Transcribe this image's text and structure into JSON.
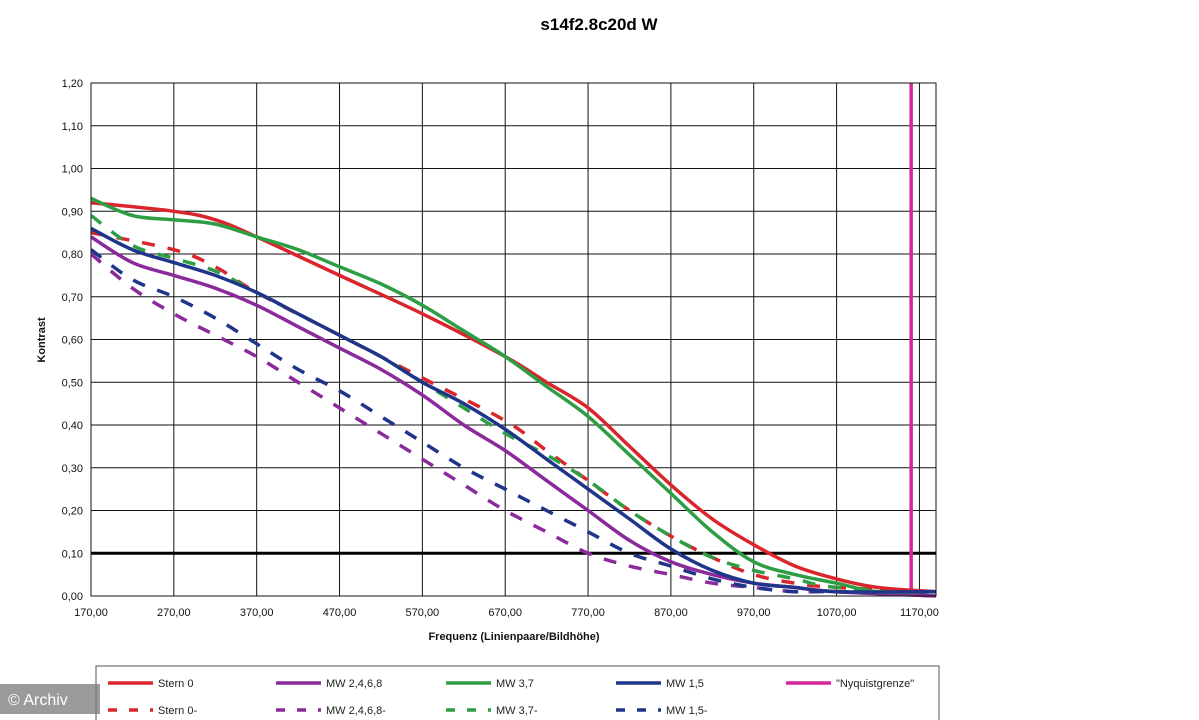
{
  "chart_data": {
    "type": "line",
    "title": "s14f2.8c20d W",
    "xlabel": "Frequenz (Linienpaare/Bildhöhe)",
    "ylabel": "Kontrast",
    "xlim": [
      170,
      1190
    ],
    "ylim": [
      0,
      1.2
    ],
    "x_ticks": [
      "170,00",
      "270,00",
      "370,00",
      "470,00",
      "570,00",
      "670,00",
      "770,00",
      "870,00",
      "970,00",
      "1070,00",
      "1170,00"
    ],
    "y_ticks": [
      "0,00",
      "0,10",
      "0,20",
      "0,30",
      "0,40",
      "0,50",
      "0,60",
      "0,70",
      "0,80",
      "0,90",
      "1,00",
      "1,10",
      "1,20"
    ],
    "x_tick_values": [
      170,
      270,
      370,
      470,
      570,
      670,
      770,
      870,
      970,
      1070,
      1170
    ],
    "y_tick_values": [
      0,
      0.1,
      0.2,
      0.3,
      0.4,
      0.5,
      0.6,
      0.7,
      0.8,
      0.9,
      1.0,
      1.1,
      1.2
    ],
    "grid": true,
    "legend_position": "bottom",
    "reference_lines": [
      {
        "orientation": "horizontal",
        "value": 0.1,
        "color": "#000000"
      },
      {
        "orientation": "vertical",
        "value": 1160,
        "color": "#d6279a",
        "name": "\"Nyquistgrenze\""
      }
    ],
    "series": [
      {
        "name": "Stern 0",
        "color": "#d9252b",
        "dashed": false,
        "x": [
          170,
          270,
          320,
          370,
          470,
          570,
          670,
          720,
          770,
          820,
          870,
          920,
          970,
          1020,
          1070,
          1120,
          1190
        ],
        "y": [
          0.92,
          0.9,
          0.88,
          0.84,
          0.75,
          0.66,
          0.56,
          0.5,
          0.44,
          0.35,
          0.26,
          0.18,
          0.12,
          0.07,
          0.04,
          0.02,
          0.01
        ]
      },
      {
        "name": "MW 2,4,6,8",
        "color": "#8b2a9b",
        "dashed": false,
        "x": [
          170,
          220,
          270,
          320,
          370,
          420,
          470,
          520,
          570,
          620,
          670,
          720,
          770,
          820,
          870,
          920,
          970,
          1020,
          1070,
          1190
        ],
        "y": [
          0.84,
          0.78,
          0.75,
          0.72,
          0.68,
          0.63,
          0.58,
          0.53,
          0.47,
          0.4,
          0.34,
          0.27,
          0.2,
          0.13,
          0.08,
          0.05,
          0.03,
          0.02,
          0.01,
          0.0
        ]
      },
      {
        "name": "MW 3,7",
        "color": "#2e9e45",
        "dashed": false,
        "x": [
          170,
          220,
          270,
          320,
          370,
          420,
          470,
          520,
          570,
          620,
          670,
          720,
          770,
          820,
          870,
          920,
          970,
          1020,
          1070,
          1120,
          1190
        ],
        "y": [
          0.93,
          0.89,
          0.88,
          0.87,
          0.84,
          0.81,
          0.77,
          0.73,
          0.68,
          0.62,
          0.56,
          0.49,
          0.42,
          0.33,
          0.24,
          0.15,
          0.08,
          0.05,
          0.03,
          0.01,
          0.01
        ]
      },
      {
        "name": "MW 1,5",
        "color": "#1e3589",
        "dashed": false,
        "x": [
          170,
          220,
          270,
          320,
          370,
          420,
          470,
          520,
          570,
          620,
          670,
          720,
          770,
          820,
          870,
          920,
          970,
          1020,
          1070,
          1190
        ],
        "y": [
          0.86,
          0.81,
          0.78,
          0.75,
          0.71,
          0.66,
          0.61,
          0.56,
          0.5,
          0.45,
          0.39,
          0.32,
          0.25,
          0.18,
          0.11,
          0.06,
          0.03,
          0.02,
          0.01,
          0.01
        ]
      },
      {
        "name": "\"Nyquistgrenze\"",
        "color": "#d6279a",
        "dashed": false,
        "x": [
          1160,
          1160
        ],
        "y": [
          0,
          1.2
        ]
      },
      {
        "name": "Stern 0-",
        "color": "#d9252b",
        "dashed": true,
        "x": [
          170,
          270,
          320,
          370,
          470,
          570,
          670,
          720,
          770,
          820,
          870,
          920,
          970,
          1020,
          1070,
          1190
        ],
        "y": [
          0.85,
          0.81,
          0.77,
          0.71,
          0.61,
          0.51,
          0.41,
          0.34,
          0.27,
          0.2,
          0.14,
          0.09,
          0.05,
          0.03,
          0.02,
          0.01
        ]
      },
      {
        "name": "MW 2,4,6,8-",
        "color": "#8b2a9b",
        "dashed": true,
        "x": [
          170,
          220,
          270,
          320,
          370,
          420,
          470,
          520,
          570,
          620,
          670,
          720,
          770,
          820,
          870,
          920,
          970,
          1020,
          1070,
          1190
        ],
        "y": [
          0.8,
          0.72,
          0.66,
          0.61,
          0.56,
          0.5,
          0.44,
          0.38,
          0.32,
          0.26,
          0.2,
          0.15,
          0.1,
          0.07,
          0.05,
          0.03,
          0.02,
          0.01,
          0.01,
          0.0
        ]
      },
      {
        "name": "MW 3,7-",
        "color": "#2e9e45",
        "dashed": true,
        "x": [
          170,
          220,
          270,
          320,
          370,
          420,
          470,
          520,
          570,
          620,
          670,
          720,
          770,
          820,
          870,
          920,
          970,
          1020,
          1070,
          1190
        ],
        "y": [
          0.89,
          0.82,
          0.79,
          0.76,
          0.71,
          0.66,
          0.61,
          0.56,
          0.5,
          0.44,
          0.38,
          0.33,
          0.27,
          0.2,
          0.14,
          0.09,
          0.06,
          0.04,
          0.02,
          0.01
        ]
      },
      {
        "name": "MW 1,5-",
        "color": "#1e3589",
        "dashed": true,
        "x": [
          170,
          220,
          270,
          320,
          370,
          420,
          470,
          520,
          570,
          620,
          670,
          720,
          770,
          820,
          870,
          920,
          970,
          1020,
          1070,
          1190
        ],
        "y": [
          0.81,
          0.74,
          0.7,
          0.65,
          0.59,
          0.53,
          0.48,
          0.42,
          0.36,
          0.3,
          0.25,
          0.2,
          0.15,
          0.1,
          0.07,
          0.04,
          0.02,
          0.01,
          0.01,
          0.0
        ]
      }
    ],
    "legend": [
      [
        "Stern 0",
        "MW 2,4,6,8",
        "MW 3,7",
        "MW 1,5",
        "\"Nyquistgrenze\""
      ],
      [
        "Stern 0-",
        "MW 2,4,6,8-",
        "MW 3,7-",
        "MW 1,5-"
      ]
    ]
  },
  "watermark": "© Archiv"
}
